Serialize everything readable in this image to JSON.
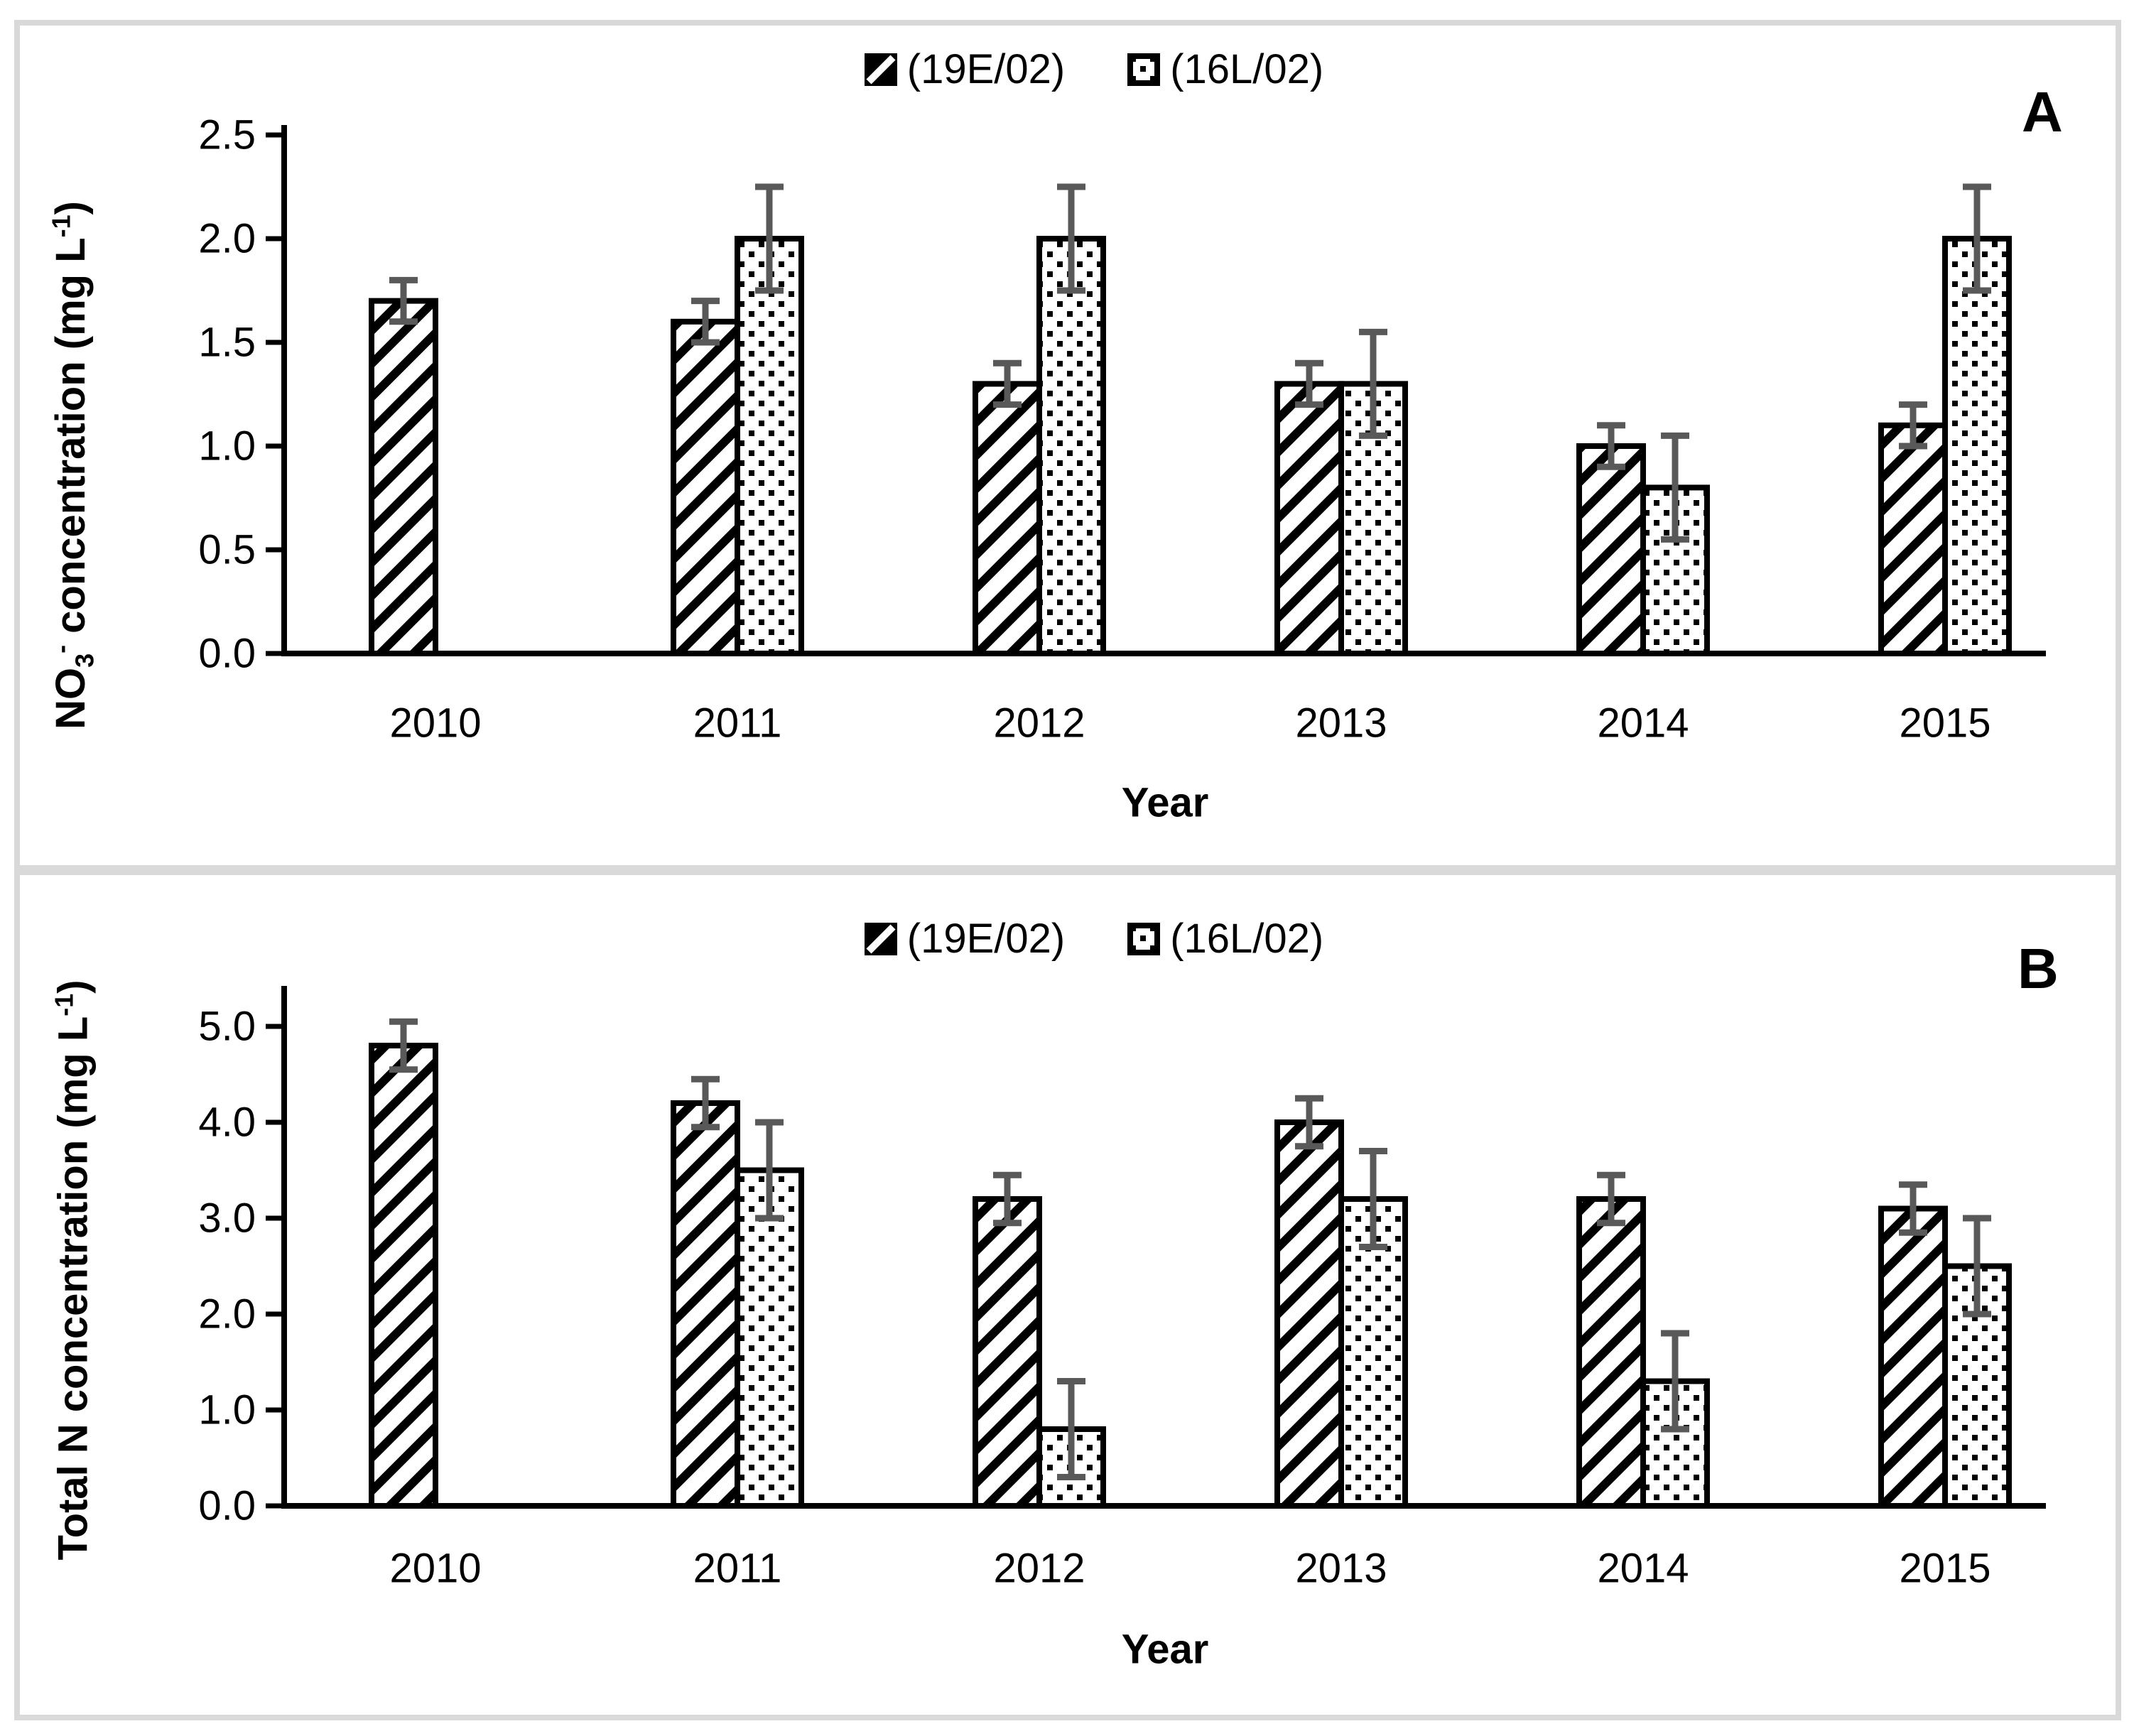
{
  "figure": {
    "background": "#ffffff",
    "frame_color": "#d9d9d9",
    "bar_outline_color": "#000000"
  },
  "error_bar_color": "#595959",
  "chart_data": [
    {
      "type": "bar",
      "panel_label": "A",
      "categories": [
        "2010",
        "2011",
        "2012",
        "2013",
        "2014",
        "2015"
      ],
      "series": [
        {
          "name": "(19E/02)",
          "pattern": "diagonal-hatch",
          "values": [
            1.7,
            1.6,
            1.3,
            1.3,
            1.0,
            1.1
          ],
          "errors": [
            0.1,
            0.1,
            0.1,
            0.1,
            0.1,
            0.1
          ]
        },
        {
          "name": "(16L/02)",
          "pattern": "dotted",
          "values": [
            null,
            2.0,
            2.0,
            1.3,
            0.8,
            2.0
          ],
          "errors": [
            null,
            0.25,
            0.25,
            0.25,
            0.25,
            0.25
          ]
        }
      ],
      "xlabel": "Year",
      "ylabel_plain": "NO3- concentration (mg L-1)",
      "ylabel_parts": [
        "NO",
        "3",
        "-",
        " concentration (mg L",
        "-1",
        ")"
      ],
      "ylim": [
        0,
        2.5
      ],
      "ytick_labels": [
        "0.0",
        "0.5",
        "1.0",
        "1.5",
        "2.0",
        "2.5"
      ],
      "grid": false,
      "legend_position": "top-center"
    },
    {
      "type": "bar",
      "panel_label": "B",
      "categories": [
        "2010",
        "2011",
        "2012",
        "2013",
        "2014",
        "2015"
      ],
      "series": [
        {
          "name": "(19E/02)",
          "pattern": "diagonal-hatch",
          "values": [
            4.8,
            4.2,
            3.2,
            4.0,
            3.2,
            3.1
          ],
          "errors": [
            0.25,
            0.25,
            0.25,
            0.25,
            0.25,
            0.25
          ]
        },
        {
          "name": "(16L/02)",
          "pattern": "dotted",
          "values": [
            null,
            3.5,
            0.8,
            3.2,
            1.3,
            2.5
          ],
          "errors": [
            null,
            0.5,
            0.5,
            0.5,
            0.5,
            0.5
          ]
        }
      ],
      "xlabel": "Year",
      "ylabel_plain": "Total N concentration (mg L-1)",
      "ylabel_parts": [
        "Total N concentration (mg L",
        "-1",
        ")"
      ],
      "ylim": [
        0,
        5.5
      ],
      "ytick_labels": [
        "0.0",
        "1.0",
        "2.0",
        "3.0",
        "4.0",
        "5.0"
      ],
      "grid": false,
      "legend_position": "top-center"
    }
  ]
}
